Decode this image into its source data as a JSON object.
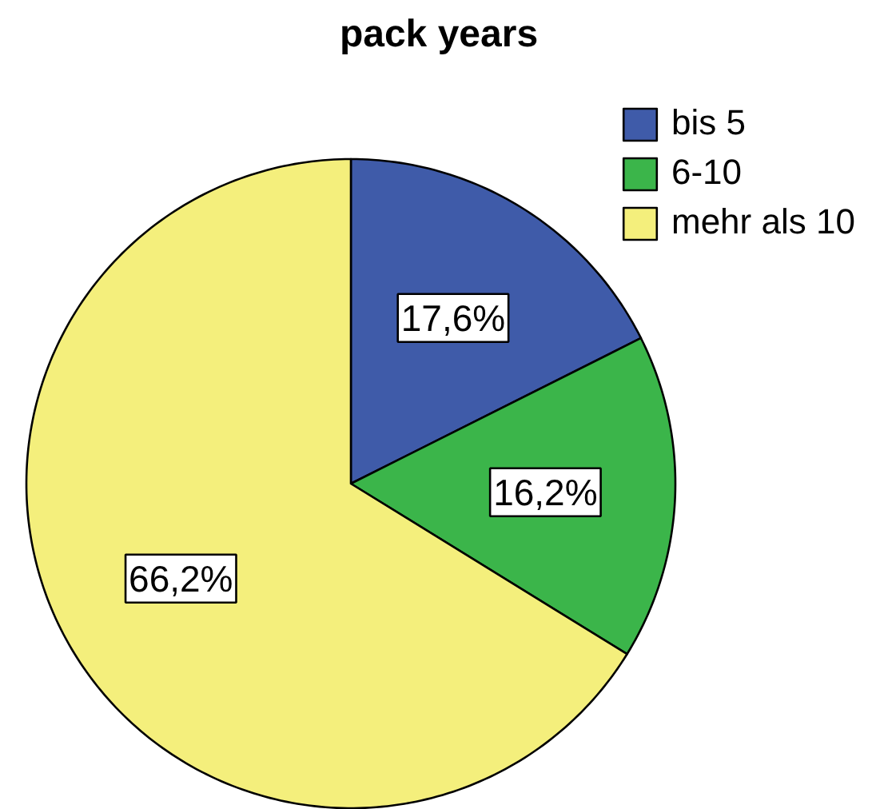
{
  "chart_data": {
    "type": "pie",
    "title": "pack years",
    "categories": [
      "bis 5",
      "6-10",
      "mehr als 10"
    ],
    "values": [
      17.6,
      16.2,
      66.2
    ],
    "colors": [
      "#3f5ba9",
      "#3bb54a",
      "#f4ef7c"
    ],
    "value_labels": [
      "17,6%",
      "16,2%",
      "66,2%"
    ],
    "legend": "top right"
  }
}
